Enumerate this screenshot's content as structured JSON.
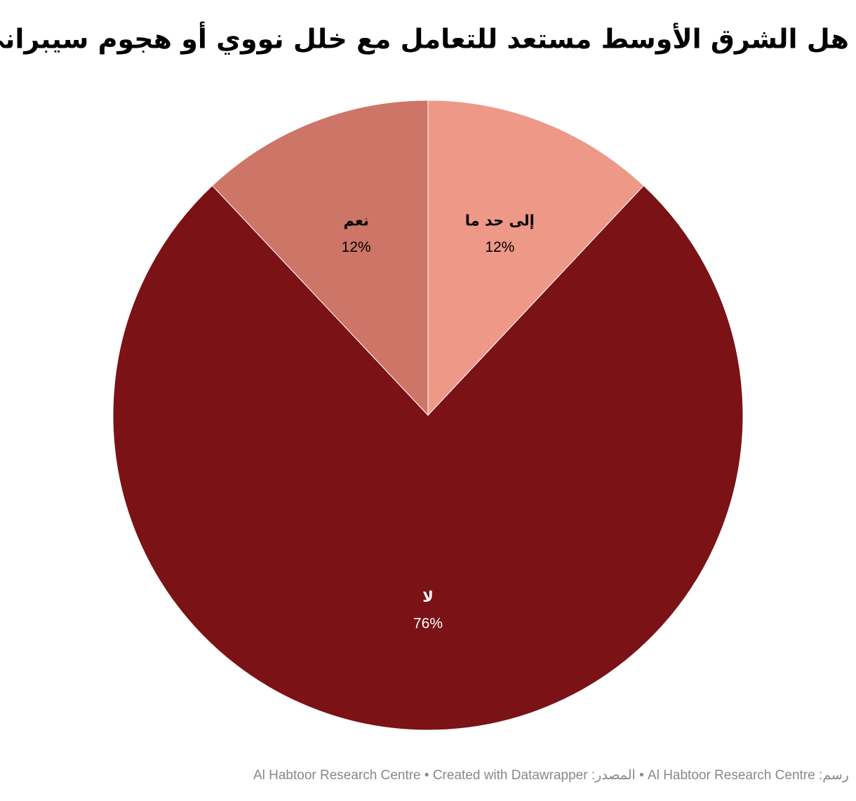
{
  "chart_data": {
    "type": "pie",
    "title": "هل الشرق الأوسط مستعد للتعامل مع خلل نووي أو هجوم سيبراني؟",
    "categories": [
      "إلى حد ما",
      "لا",
      "نعم"
    ],
    "values": [
      12,
      76,
      12
    ],
    "value_labels": [
      "12%",
      "76%",
      "12%"
    ],
    "colors": [
      "#ee9888",
      "#7b1216",
      "#cd7567"
    ],
    "footer": "رسم: Al Habtoor Research Centre • المصدر: Al Habtoor Research Centre • Created with Datawrapper"
  }
}
